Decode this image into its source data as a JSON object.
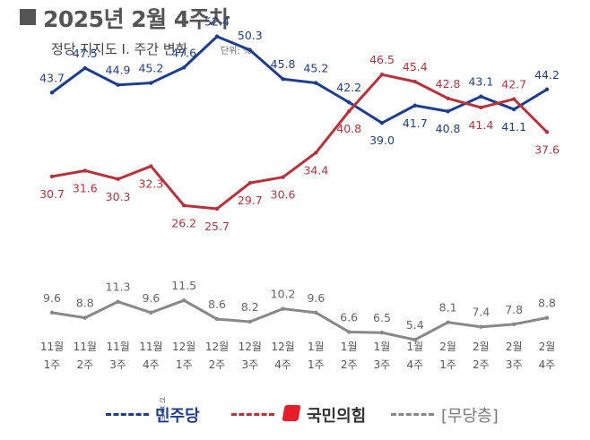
{
  "header": {
    "title": "2025년 2월 4주차",
    "subtitle": "정당 지지도 Ⅰ. 주간 변화",
    "unit": "단위: %"
  },
  "colors": {
    "democratic": "#1e3d8c",
    "ppp": "#b8323c",
    "independent": "#888888",
    "title_mark": "#555555",
    "ppp_logo": "#e61e2b"
  },
  "chart_data": {
    "type": "line",
    "categories": [
      "11월 1주",
      "11월 2주",
      "11월 3주",
      "11월 4주",
      "12월 1주",
      "12월 2주",
      "12월 3주",
      "12월 4주",
      "1월 1주",
      "1월 2주",
      "1월 3주",
      "1월 4주",
      "2월 1주",
      "2월 2주",
      "2월 3주",
      "2월 4주"
    ],
    "x_labels": [
      [
        "11월",
        "1주"
      ],
      [
        "11월",
        "2주"
      ],
      [
        "11월",
        "3주"
      ],
      [
        "11월",
        "4주"
      ],
      [
        "12월",
        "1주"
      ],
      [
        "12월",
        "2주"
      ],
      [
        "12월",
        "3주"
      ],
      [
        "12월",
        "4주"
      ],
      [
        "1월",
        "1주"
      ],
      [
        "1월",
        "2주"
      ],
      [
        "1월",
        "3주"
      ],
      [
        "1월",
        "4주"
      ],
      [
        "2월",
        "1주"
      ],
      [
        "2월",
        "2주"
      ],
      [
        "2월",
        "3주"
      ],
      [
        "2월",
        "4주"
      ]
    ],
    "series": [
      {
        "name": "민주당",
        "values": [
          43.7,
          47.5,
          44.9,
          45.2,
          47.6,
          52.4,
          50.3,
          45.8,
          45.2,
          42.2,
          39.0,
          41.7,
          40.8,
          43.1,
          41.1,
          44.2
        ]
      },
      {
        "name": "국민의힘",
        "values": [
          30.7,
          31.6,
          30.3,
          32.3,
          26.2,
          25.7,
          29.7,
          30.6,
          34.4,
          40.8,
          46.5,
          45.4,
          42.8,
          41.4,
          42.7,
          37.6
        ]
      },
      {
        "name": "[무당층]",
        "values": [
          9.6,
          8.8,
          11.3,
          9.6,
          11.5,
          8.6,
          8.2,
          10.2,
          9.6,
          6.6,
          6.5,
          5.4,
          8.1,
          7.4,
          7.8,
          8.8
        ]
      }
    ],
    "grid": false,
    "legend_position": "bottom"
  },
  "legend": {
    "democratic_small": "더불어",
    "democratic": "민주당",
    "ppp": "국민의힘",
    "independent": "[무당층]"
  }
}
